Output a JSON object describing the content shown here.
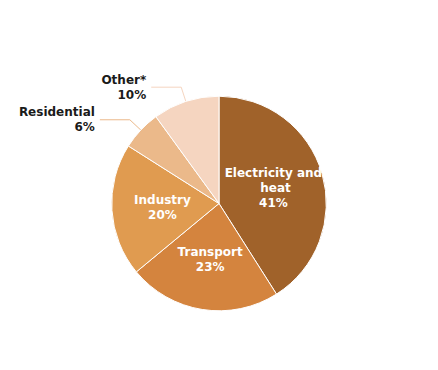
{
  "chart_data": {
    "type": "pie",
    "categories": [
      "Electricity and heat",
      "Transport",
      "Industry",
      "Residential",
      "Other*"
    ],
    "values": [
      41,
      23,
      20,
      6,
      10
    ],
    "value_labels": [
      "41%",
      "23%",
      "20%",
      "6%",
      "10%"
    ],
    "colors": [
      "#A0622A",
      "#D4843E",
      "#E09B50",
      "#EBB98A",
      "#F5D5C0"
    ],
    "data_labels": true
  }
}
